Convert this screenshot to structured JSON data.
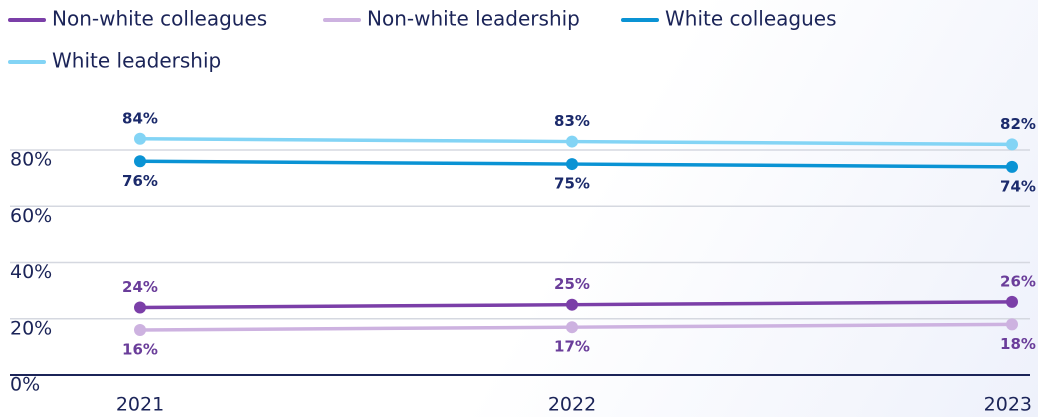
{
  "chart_data": {
    "type": "line",
    "x": [
      "2021",
      "2022",
      "2023"
    ],
    "series": [
      {
        "name": "Non-white colleagues",
        "color": "#7b3fa8",
        "values": [
          24,
          25,
          26
        ],
        "value_labels": [
          "24%",
          "25%",
          "26%"
        ]
      },
      {
        "name": "Non-white leadership",
        "color": "#cdb2e0",
        "values": [
          16,
          17,
          18
        ],
        "value_labels": [
          "16%",
          "17%",
          "18%"
        ]
      },
      {
        "name": "White colleagues",
        "color": "#0a93d4",
        "values": [
          76,
          75,
          74
        ],
        "value_labels": [
          "76%",
          "75%",
          "74%"
        ]
      },
      {
        "name": "White leadership",
        "color": "#83d4f5",
        "values": [
          84,
          83,
          82
        ],
        "value_labels": [
          "84%",
          "83%",
          "82%"
        ]
      }
    ],
    "ylim": [
      0,
      80
    ],
    "yticks": [
      {
        "value": 0,
        "label": "0%"
      },
      {
        "value": 20,
        "label": "20%"
      },
      {
        "value": 40,
        "label": "40%"
      },
      {
        "value": 60,
        "label": "60%"
      },
      {
        "value": 80,
        "label": "80%"
      }
    ],
    "grid": true
  }
}
